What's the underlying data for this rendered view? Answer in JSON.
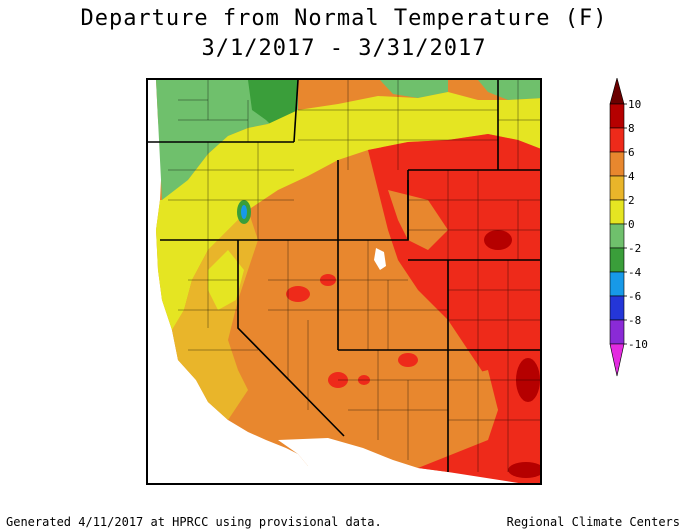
{
  "title_line1": "Departure from Normal Temperature (F)",
  "title_line2": "3/1/2017 - 3/31/2017",
  "legend": {
    "ticks": [
      {
        "value": "10",
        "label": "10"
      },
      {
        "value": "8",
        "label": "8"
      },
      {
        "value": "6",
        "label": "6"
      },
      {
        "value": "4",
        "label": "4"
      },
      {
        "value": "2",
        "label": "2"
      },
      {
        "value": "0",
        "label": "0"
      },
      {
        "value": "-2",
        "label": "-2"
      },
      {
        "value": "-4",
        "label": "-4"
      },
      {
        "value": "-6",
        "label": "-6"
      },
      {
        "value": "-8",
        "label": "-8"
      },
      {
        "value": "-10",
        "label": "-10"
      }
    ],
    "bins": [
      {
        "range": "8 to 10",
        "color": "#b50000"
      },
      {
        "range": "6 to 8",
        "color": "#ee2a1a"
      },
      {
        "range": "4 to 6",
        "color": "#e8872e"
      },
      {
        "range": "2 to 4",
        "color": "#e9b52a"
      },
      {
        "range": "0 to 2",
        "color": "#e5e522"
      },
      {
        "range": "-2 to 0",
        "color": "#6fc06c"
      },
      {
        "range": "-4 to -2",
        "color": "#3a9e3a"
      },
      {
        "range": "-6 to -4",
        "color": "#1799e8"
      },
      {
        "range": "-8 to -6",
        "color": "#2436d8"
      },
      {
        "range": "-10 to -8",
        "color": "#8a2ad6"
      },
      {
        "range": "< -10",
        "color": "#e32be0"
      }
    ],
    "top_arrow_color": "#6b0000",
    "bottom_arrow_color": "#ff44ff"
  },
  "footer_left": "Generated 4/11/2017 at HPRCC using provisional data.",
  "footer_right": "Regional Climate Centers"
}
